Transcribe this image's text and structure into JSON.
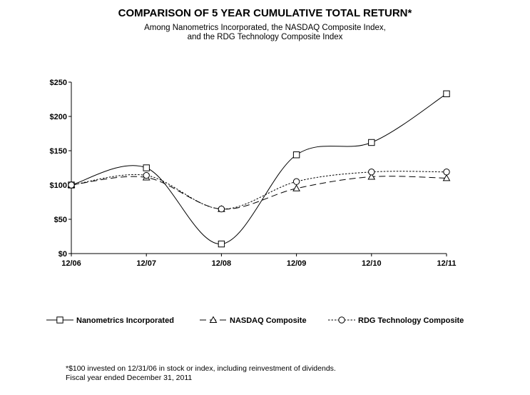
{
  "chart_data": {
    "type": "line",
    "title": "COMPARISON OF 5 YEAR CUMULATIVE TOTAL RETURN*",
    "subtitle_lines": [
      "Among Nanometrics Incorporated, the NASDAQ  Composite Index,",
      "and the RDG Technology Composite Index"
    ],
    "categories": [
      "12/06",
      "12/07",
      "12/08",
      "12/09",
      "12/10",
      "12/11"
    ],
    "ylim": [
      0,
      250
    ],
    "yticks": [
      0,
      50,
      100,
      150,
      200,
      250
    ],
    "ytick_labels": [
      "$0",
      "$50",
      "$100",
      "$150",
      "$200",
      "$250"
    ],
    "grid": false,
    "legend_position": "bottom",
    "series": [
      {
        "name": "Nanometrics Incorporated",
        "marker": "square",
        "dash": "solid",
        "values": [
          100,
          125,
          14,
          144,
          162,
          233
        ]
      },
      {
        "name": "NASDAQ Composite",
        "marker": "triangle",
        "dash": "dashed",
        "values": [
          100,
          111,
          65,
          95,
          112,
          110
        ]
      },
      {
        "name": "RDG Technology Composite",
        "marker": "circle",
        "dash": "dotted",
        "values": [
          100,
          114,
          65,
          105,
          119,
          119
        ]
      }
    ],
    "footnotes": [
      "*$100 invested on 12/31/06 in stock or index, including reinvestment of dividends.",
      "Fiscal year ended December 31, 2011"
    ]
  }
}
